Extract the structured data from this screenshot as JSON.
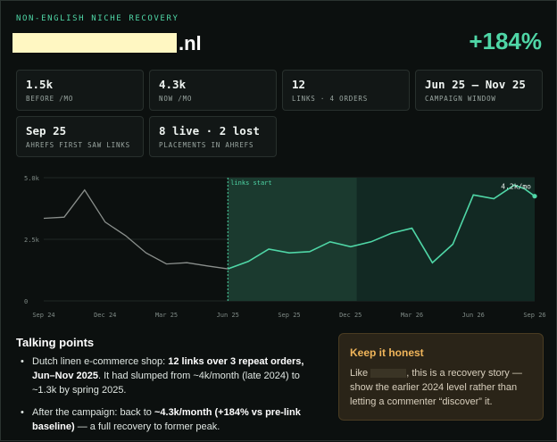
{
  "header": {
    "eyebrow": "NON-ENGLISH NICHE RECOVERY",
    "domain_suffix": ".nl",
    "headline_change": "+184%"
  },
  "stats": [
    {
      "value": "1.5k",
      "label": "BEFORE /MO"
    },
    {
      "value": "4.3k",
      "label": "NOW /MO"
    },
    {
      "value": "12",
      "label": "LINKS · 4 ORDERS"
    },
    {
      "value": "Jun 25 – Nov 25",
      "label": "CAMPAIGN WINDOW"
    },
    {
      "value": "Sep 25",
      "label": "AHREFS FIRST SAW LINKS"
    },
    {
      "value": "8 live · 2 lost",
      "label": "PLACEMENTS IN AHREFS"
    }
  ],
  "chart_data": {
    "type": "line",
    "y_ticks": [
      "5.0k",
      "2.5k",
      "0"
    ],
    "x_ticks": [
      "Sep 24",
      "Dec 24",
      "Mar 25",
      "Jun 25",
      "Sep 25",
      "Dec 25",
      "Mar 26",
      "Jun 26",
      "Sep 26"
    ],
    "ylim": [
      0,
      5000
    ],
    "xlim": [
      0,
      24
    ],
    "grid": true,
    "highlight_label": "links start",
    "end_label": "4.2k/mo",
    "pre_series": {
      "name": "",
      "x": [
        0,
        1,
        2,
        3,
        4,
        5,
        6,
        7,
        8,
        9
      ],
      "y": [
        3350,
        3400,
        4500,
        3200,
        2650,
        1950,
        1500,
        1550,
        1420,
        1300
      ]
    },
    "post_series": {
      "name": "",
      "x": [
        9,
        10,
        11,
        12,
        13,
        14,
        15,
        16,
        17,
        18,
        19,
        20,
        21,
        22,
        23,
        23.5,
        24
      ],
      "y": [
        1300,
        1600,
        2100,
        1950,
        2000,
        2400,
        2200,
        2400,
        2750,
        2950,
        1550,
        2300,
        4300,
        4150,
        4700,
        4550,
        4250
      ]
    },
    "highlight_range_x": [
      9,
      15.3
    ],
    "highlight_extends_to": 24
  },
  "talking_points": {
    "title": "Talking points",
    "items": [
      {
        "pre": "Dutch linen e-commerce shop: ",
        "bold": "12 links over 3 repeat orders, Jun–Nov 2025",
        "post": ". It had slumped from ~4k/month (late 2024) to ~1.3k by spring 2025."
      },
      {
        "pre": "After the campaign: back to ",
        "bold": "~4.3k/month (+184% vs pre-link baseline)",
        "post": " — a full recovery to former peak."
      }
    ]
  },
  "honest_card": {
    "title": "Keep it honest",
    "text_pre": "Like ",
    "text_post": ", this is a recovery story — show the earlier 2024 level rather than letting a commenter “discover” it."
  },
  "colors": {
    "accent": "#4fd6a6",
    "warning": "#f0b55a",
    "pre_line": "#8a8f8c",
    "highlight_fill": "#1b3a2f"
  }
}
